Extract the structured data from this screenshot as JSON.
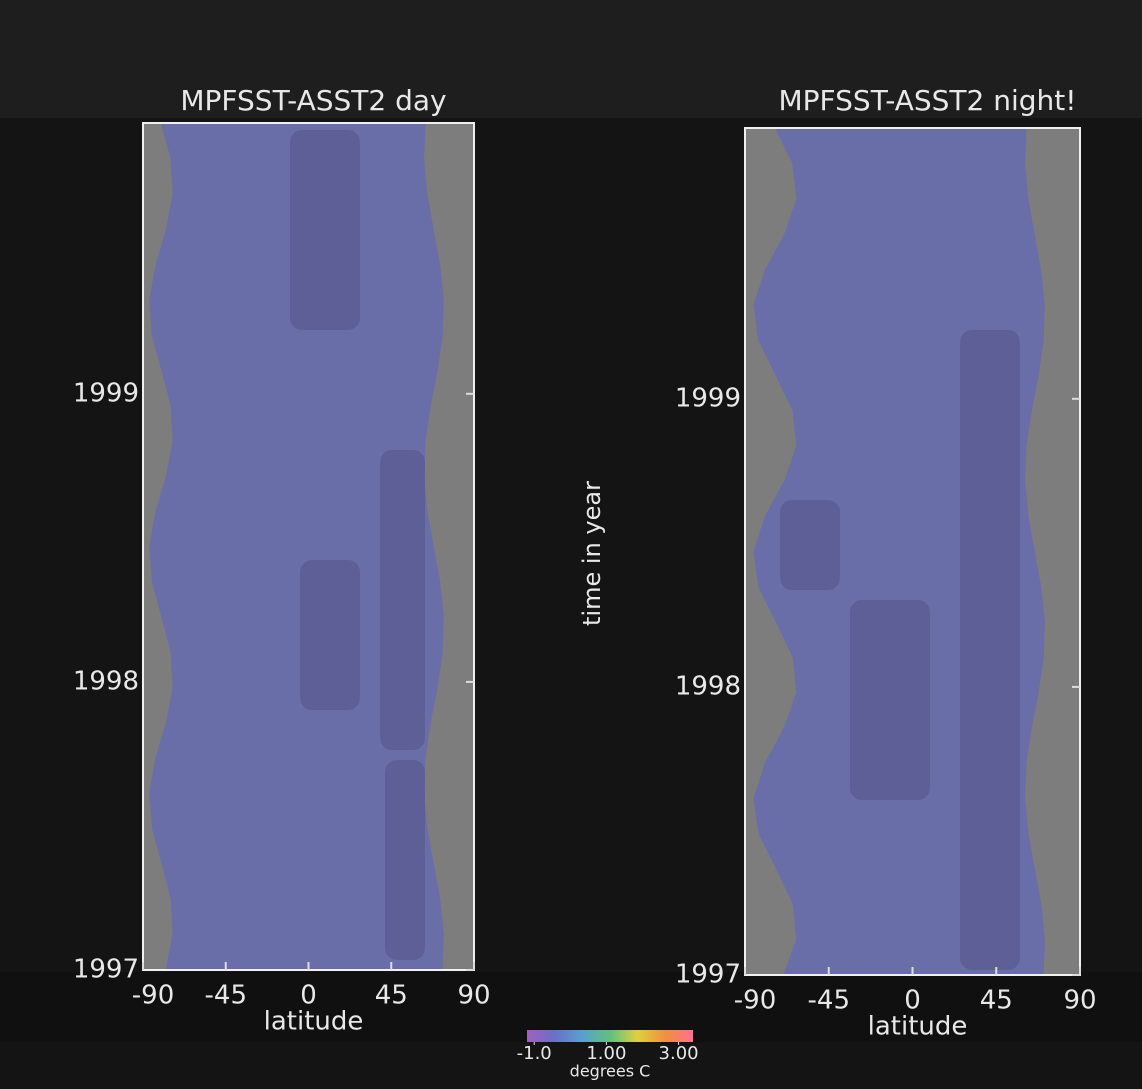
{
  "chart_data": [
    {
      "type": "image",
      "title": "MPFSST-ASST2 day",
      "xlabel": "latitude",
      "xlim": [
        -90,
        90
      ],
      "xticks": [
        -90,
        -45,
        0,
        45,
        90
      ],
      "ylim": [
        1997,
        1999.94
      ],
      "yticks": [
        1997,
        1998,
        1999
      ]
    },
    {
      "type": "image",
      "title": "MPFSST-ASST2 night!",
      "xlabel": "latitude",
      "ylabel": "time in year",
      "xlim": [
        -90,
        90
      ],
      "xticks": [
        -90,
        -45,
        0,
        45,
        90
      ],
      "ylim": [
        1997,
        1999.94
      ],
      "yticks": [
        1997,
        1998,
        1999
      ]
    },
    {
      "type": "colorbar",
      "label": "degrees C",
      "lim": [
        -1.2,
        3.4
      ],
      "ticks": [
        {
          "value": -1.0,
          "label": "-1.0"
        },
        {
          "value": 1.0,
          "label": "1.00"
        },
        {
          "value": 3.0,
          "label": "3.00"
        }
      ],
      "colors": [
        "#a060c0",
        "#6a70c8",
        "#5aa0d0",
        "#60c080",
        "#e0d040",
        "#f09040",
        "#ff7090"
      ]
    }
  ]
}
